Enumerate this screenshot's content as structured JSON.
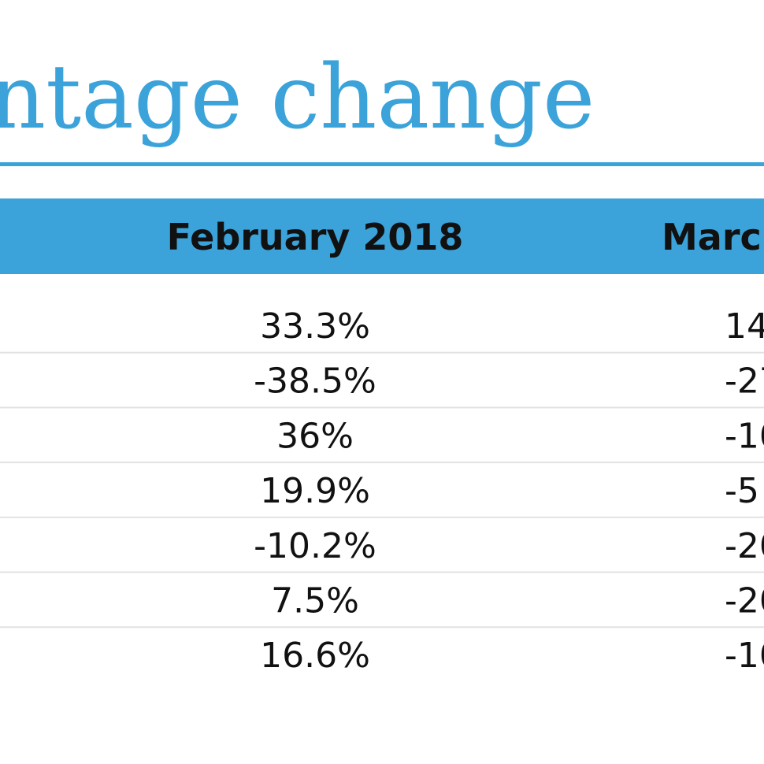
{
  "header": {
    "title": "ntage change"
  },
  "table": {
    "columns": [
      "February 2018",
      "Marc"
    ],
    "rows": [
      [
        "33.3%",
        "14"
      ],
      [
        "-38.5%",
        "-27"
      ],
      [
        "36%",
        "-10"
      ],
      [
        "19.9%",
        "-5"
      ],
      [
        "-10.2%",
        "-20"
      ],
      [
        "7.5%",
        "-20"
      ],
      [
        "16.6%",
        "-10"
      ]
    ]
  }
}
